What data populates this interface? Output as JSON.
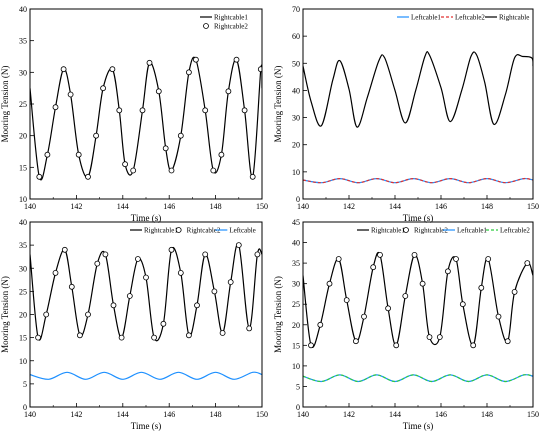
{
  "chart_data": [
    {
      "type": "line",
      "title": "",
      "xlabel": "Time (s)",
      "ylabel": "Mooring Tension (N)",
      "xlim": [
        140,
        150
      ],
      "ylim": [
        10,
        40
      ],
      "xticks": [
        140,
        142,
        144,
        146,
        148,
        150
      ],
      "yticks": [
        10,
        15,
        20,
        25,
        30,
        35,
        40
      ],
      "grid": false,
      "legend_position": "top-right",
      "series": [
        {
          "name": "Rightcable1",
          "style": "solid",
          "color": "#000000",
          "x": [
            140.0,
            140.4,
            140.75,
            141.1,
            141.45,
            141.75,
            142.1,
            142.5,
            142.85,
            143.15,
            143.55,
            143.85,
            144.1,
            144.45,
            144.85,
            145.15,
            145.55,
            145.85,
            146.1,
            146.5,
            146.85,
            147.15,
            147.55,
            147.9,
            148.25,
            148.55,
            148.9,
            149.25,
            149.6,
            149.95,
            150.0
          ],
          "y": [
            27.5,
            13.5,
            17.0,
            24.5,
            30.5,
            26.5,
            17.0,
            13.5,
            20.0,
            27.5,
            30.5,
            24.0,
            15.5,
            14.5,
            24.0,
            31.5,
            27.0,
            18.0,
            14.5,
            20.0,
            30.0,
            32.0,
            24.0,
            14.5,
            17.0,
            27.0,
            32.0,
            24.0,
            13.5,
            30.5,
            27.5
          ]
        },
        {
          "name": "Rightcable2",
          "style": "circle-marker",
          "color": "#000000",
          "x": [
            140.0,
            140.4,
            140.75,
            141.1,
            141.45,
            141.75,
            142.1,
            142.5,
            142.85,
            143.15,
            143.55,
            143.85,
            144.1,
            144.45,
            144.85,
            145.15,
            145.55,
            145.85,
            146.1,
            146.5,
            146.85,
            147.15,
            147.55,
            147.9,
            148.25,
            148.55,
            148.9,
            149.25,
            149.6,
            149.95,
            150.0
          ],
          "y": [
            27.5,
            13.5,
            17.0,
            24.5,
            30.5,
            26.5,
            17.0,
            13.5,
            20.0,
            27.5,
            30.5,
            24.0,
            15.5,
            14.5,
            24.0,
            31.5,
            27.0,
            18.0,
            14.5,
            20.0,
            30.0,
            32.0,
            24.0,
            14.5,
            17.0,
            27.0,
            32.0,
            24.0,
            13.5,
            30.5,
            27.5
          ]
        }
      ]
    },
    {
      "type": "line",
      "title": "",
      "xlabel": "Time (s)",
      "ylabel": "Mooring Tension (N)",
      "xlim": [
        140,
        150
      ],
      "ylim": [
        0,
        70
      ],
      "xticks": [
        140,
        142,
        144,
        146,
        148,
        150
      ],
      "yticks": [
        0,
        10,
        20,
        30,
        40,
        50,
        60,
        70
      ],
      "grid": false,
      "legend_position": "top-right",
      "series": [
        {
          "name": "Leftcable1",
          "style": "solid",
          "color": "#1e90ff",
          "x": [
            140.0,
            140.8,
            141.6,
            142.4,
            143.2,
            144.0,
            144.8,
            145.6,
            146.4,
            147.2,
            148.0,
            148.8,
            149.6,
            150.0
          ],
          "y": [
            7.0,
            6.0,
            7.5,
            6.0,
            7.5,
            6.0,
            7.5,
            6.0,
            7.5,
            6.0,
            7.5,
            6.0,
            7.5,
            7.0
          ]
        },
        {
          "name": "Leftcable2",
          "style": "dashed",
          "color": "#e03030",
          "x": [
            140.0,
            140.8,
            141.6,
            142.4,
            143.2,
            144.0,
            144.8,
            145.6,
            146.4,
            147.2,
            148.0,
            148.8,
            149.6,
            150.0
          ],
          "y": [
            7.0,
            6.0,
            7.5,
            6.0,
            7.5,
            6.0,
            7.5,
            6.0,
            7.5,
            6.0,
            7.5,
            6.0,
            7.5,
            7.0
          ]
        },
        {
          "name": "Rightcable",
          "style": "solid",
          "color": "#000000",
          "x": [
            140.0,
            140.35,
            140.8,
            141.3,
            141.6,
            142.0,
            142.35,
            142.8,
            143.3,
            143.55,
            144.0,
            144.45,
            144.9,
            145.3,
            145.5,
            146.0,
            146.4,
            146.9,
            147.3,
            147.55,
            147.9,
            148.3,
            148.8,
            149.2,
            149.55,
            149.95,
            150.0
          ],
          "y": [
            49.0,
            36.0,
            27.0,
            44.0,
            51.0,
            40.5,
            26.5,
            37.5,
            51.0,
            52.0,
            40.0,
            28.0,
            40.0,
            52.5,
            53.0,
            41.0,
            28.5,
            40.0,
            52.5,
            53.0,
            43.0,
            27.5,
            38.5,
            52.0,
            52.5,
            52.0,
            49.0
          ]
        }
      ]
    },
    {
      "type": "line",
      "title": "",
      "xlabel": "Time (s)",
      "ylabel": "Mooring Tension (N)",
      "xlim": [
        140,
        150
      ],
      "ylim": [
        0,
        40
      ],
      "xticks": [
        140,
        142,
        144,
        146,
        148,
        150
      ],
      "yticks": [
        0,
        5,
        10,
        15,
        20,
        25,
        30,
        35,
        40
      ],
      "grid": false,
      "legend_position": "top-right",
      "series": [
        {
          "name": "Rightcable1",
          "style": "solid",
          "color": "#000000",
          "x": [
            140.0,
            140.35,
            140.7,
            141.1,
            141.5,
            141.8,
            142.15,
            142.5,
            142.9,
            143.25,
            143.6,
            143.95,
            144.3,
            144.65,
            145.0,
            145.35,
            145.75,
            146.1,
            146.5,
            146.85,
            147.2,
            147.55,
            147.95,
            148.3,
            148.65,
            149.0,
            149.45,
            149.8,
            150.0
          ],
          "y": [
            33.0,
            15.0,
            20.0,
            29.0,
            34.0,
            26.0,
            15.5,
            20.0,
            31.0,
            33.0,
            22.0,
            15.0,
            24.0,
            32.0,
            28.0,
            15.0,
            18.0,
            34.0,
            29.0,
            15.5,
            22.0,
            33.0,
            25.0,
            16.0,
            27.0,
            35.0,
            17.0,
            33.0,
            33.0
          ]
        },
        {
          "name": "Rightcable2",
          "style": "circle-marker",
          "color": "#000000",
          "x": [
            140.0,
            140.35,
            140.7,
            141.1,
            141.5,
            141.8,
            142.15,
            142.5,
            142.9,
            143.25,
            143.6,
            143.95,
            144.3,
            144.65,
            145.0,
            145.35,
            145.75,
            146.1,
            146.5,
            146.85,
            147.2,
            147.55,
            147.95,
            148.3,
            148.65,
            149.0,
            149.45,
            149.8,
            150.0
          ],
          "y": [
            33.0,
            15.0,
            20.0,
            29.0,
            34.0,
            26.0,
            15.5,
            20.0,
            31.0,
            33.0,
            22.0,
            15.0,
            24.0,
            32.0,
            28.0,
            15.0,
            18.0,
            34.0,
            29.0,
            15.5,
            22.0,
            33.0,
            25.0,
            16.0,
            27.0,
            35.0,
            17.0,
            33.0,
            33.0
          ]
        },
        {
          "name": "Leftcable",
          "style": "solid",
          "color": "#1e90ff",
          "x": [
            140.0,
            140.8,
            141.6,
            142.4,
            143.2,
            144.0,
            144.8,
            145.6,
            146.4,
            147.2,
            148.0,
            148.8,
            149.6,
            150.0
          ],
          "y": [
            7.0,
            6.0,
            7.5,
            6.0,
            7.5,
            6.0,
            7.5,
            6.0,
            7.5,
            6.0,
            7.5,
            6.0,
            7.5,
            7.0
          ]
        }
      ]
    },
    {
      "type": "line",
      "title": "",
      "xlabel": "Time (s)",
      "ylabel": "Mooring Tension (N)",
      "xlim": [
        140,
        150
      ],
      "ylim": [
        0,
        45
      ],
      "xticks": [
        140,
        142,
        144,
        146,
        148,
        150
      ],
      "yticks": [
        0,
        5,
        10,
        15,
        20,
        25,
        30,
        35,
        40,
        45
      ],
      "grid": false,
      "legend_position": "top-right",
      "series": [
        {
          "name": "Rightcable1",
          "style": "solid",
          "color": "#000000",
          "x": [
            140.0,
            140.35,
            140.75,
            141.15,
            141.55,
            141.9,
            142.3,
            142.65,
            143.05,
            143.35,
            143.7,
            144.05,
            144.45,
            144.85,
            145.2,
            145.5,
            145.95,
            146.3,
            146.65,
            146.95,
            147.4,
            147.75,
            148.05,
            148.5,
            148.9,
            149.2,
            149.75,
            150.0
          ],
          "y": [
            32.0,
            15.0,
            20.0,
            30.0,
            36.0,
            26.0,
            16.0,
            22.0,
            34.0,
            37.0,
            24.0,
            15.0,
            27.0,
            37.0,
            30.0,
            17.0,
            17.0,
            33.0,
            36.0,
            25.0,
            15.0,
            29.0,
            36.0,
            22.0,
            16.0,
            28.0,
            35.0,
            32.0
          ]
        },
        {
          "name": "Rightcable2",
          "style": "circle-marker",
          "color": "#000000",
          "x": [
            140.0,
            140.35,
            140.75,
            141.15,
            141.55,
            141.9,
            142.3,
            142.65,
            143.05,
            143.35,
            143.7,
            144.05,
            144.45,
            144.85,
            145.2,
            145.5,
            145.95,
            146.3,
            146.65,
            146.95,
            147.4,
            147.75,
            148.05,
            148.5,
            148.9,
            149.2,
            149.75,
            150.0
          ],
          "y": [
            32.0,
            15.0,
            20.0,
            30.0,
            36.0,
            26.0,
            16.0,
            22.0,
            34.0,
            37.0,
            24.0,
            15.0,
            27.0,
            37.0,
            30.0,
            17.0,
            17.0,
            33.0,
            36.0,
            25.0,
            15.0,
            29.0,
            36.0,
            22.0,
            16.0,
            28.0,
            35.0,
            32.0
          ]
        },
        {
          "name": "Leftcable1",
          "style": "solid",
          "color": "#1e90ff",
          "x": [
            140.0,
            140.8,
            141.6,
            142.4,
            143.2,
            144.0,
            144.8,
            145.6,
            146.4,
            147.2,
            148.0,
            148.8,
            149.6,
            150.0
          ],
          "y": [
            7.5,
            6.2,
            7.8,
            6.2,
            7.8,
            6.2,
            7.8,
            6.2,
            7.8,
            6.2,
            7.8,
            6.2,
            7.8,
            7.5
          ]
        },
        {
          "name": "Leftcable2",
          "style": "dashed",
          "color": "#2ecc40",
          "x": [
            140.0,
            140.8,
            141.6,
            142.4,
            143.2,
            144.0,
            144.8,
            145.6,
            146.4,
            147.2,
            148.0,
            148.8,
            149.6,
            150.0
          ],
          "y": [
            7.5,
            6.2,
            7.8,
            6.2,
            7.8,
            6.2,
            7.8,
            6.2,
            7.8,
            6.2,
            7.8,
            6.2,
            7.8,
            7.5
          ]
        }
      ]
    }
  ]
}
